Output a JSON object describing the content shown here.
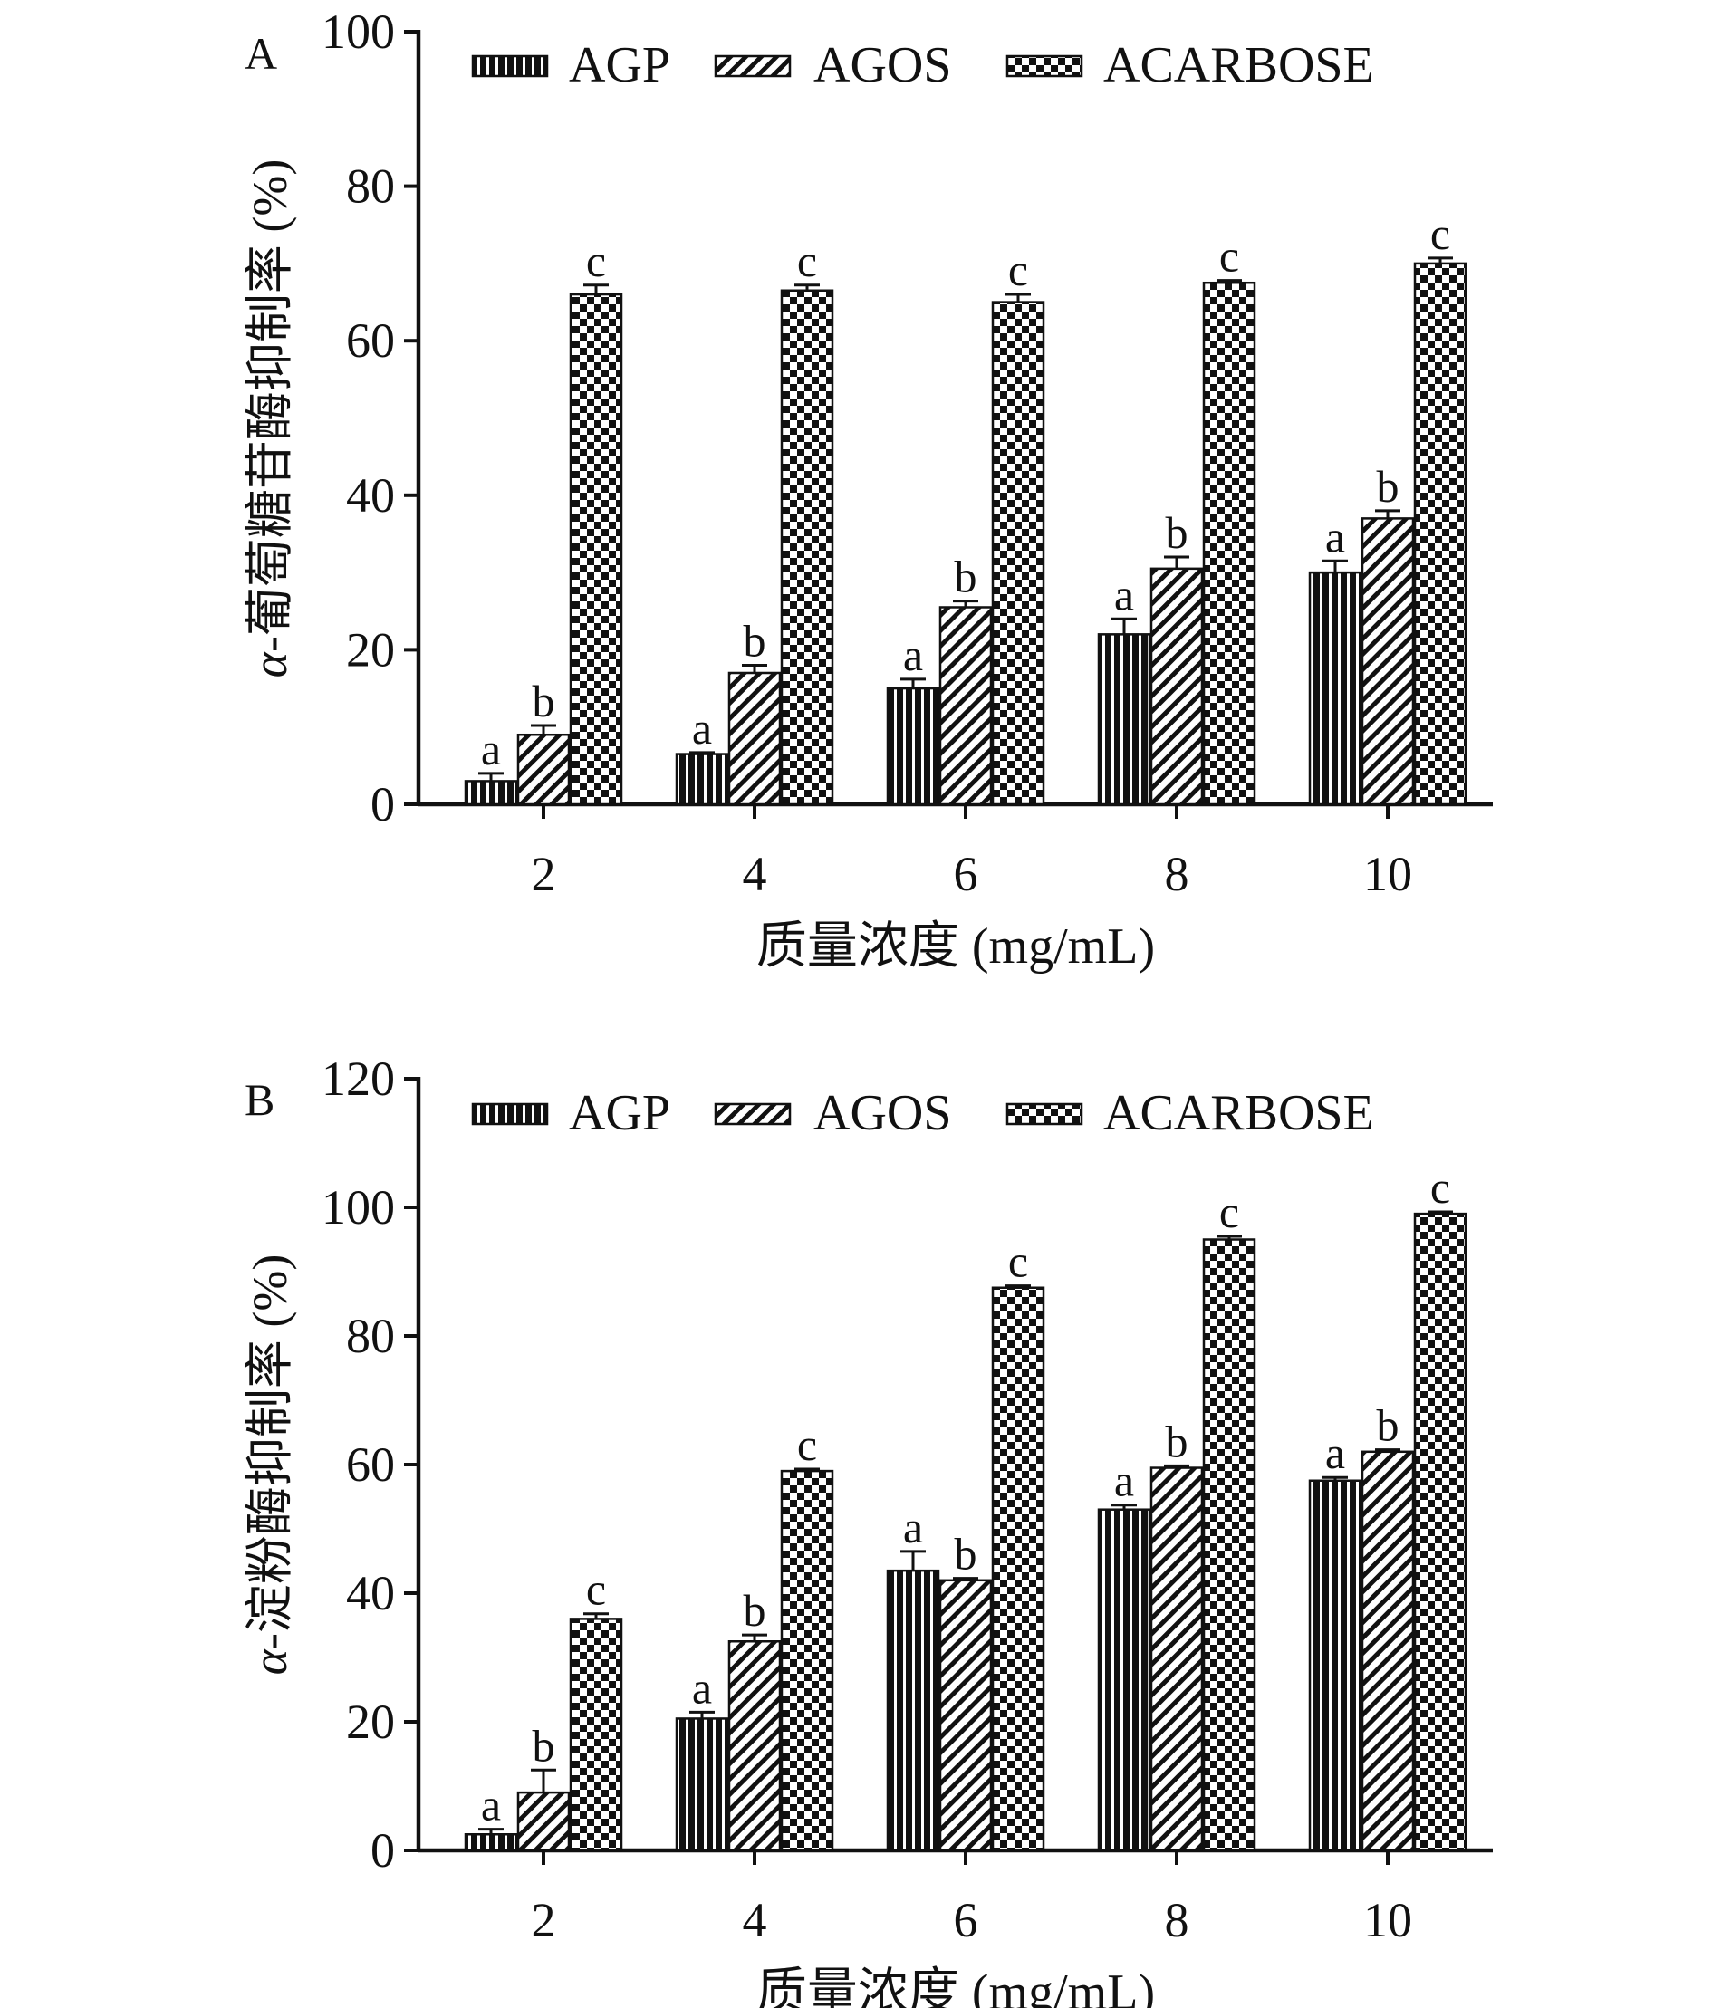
{
  "colors": {
    "ink": "#111111",
    "background": "#ffffff"
  },
  "series_names": [
    "AGP",
    "AGOS",
    "ACARBOSE"
  ],
  "chart_data": [
    {
      "panel_label": "A",
      "type": "bar",
      "xlabel": "质量浓度 (mg/mL)",
      "ylabel": "α-葡萄糖苷酶抑制率 (%)",
      "ylabel_prefix": "α",
      "ylabel_rest": "-葡萄糖苷酶抑制率 (%)",
      "ylim": [
        0,
        100
      ],
      "yticks": [
        0,
        20,
        40,
        60,
        80,
        100
      ],
      "categories": [
        "2",
        "4",
        "6",
        "8",
        "10"
      ],
      "legend_position": "top",
      "series": [
        {
          "name": "AGP",
          "pattern": "vertical-stripes",
          "values": [
            3,
            6.5,
            15,
            22,
            30
          ],
          "errors": [
            1,
            0.2,
            1.2,
            2,
            1.5
          ],
          "letters": [
            "a",
            "a",
            "a",
            "a",
            "a"
          ]
        },
        {
          "name": "AGOS",
          "pattern": "diagonal-hatch",
          "values": [
            9,
            17,
            25.5,
            30.5,
            37
          ],
          "errors": [
            1.2,
            1,
            0.8,
            1.5,
            1
          ],
          "letters": [
            "b",
            "b",
            "b",
            "b",
            "b"
          ]
        },
        {
          "name": "ACARBOSE",
          "pattern": "checkerboard",
          "values": [
            66,
            66.5,
            65,
            67.5,
            70
          ],
          "errors": [
            1.2,
            0.7,
            1,
            0.3,
            0.7
          ],
          "letters": [
            "c",
            "c",
            "c",
            "c",
            "c"
          ]
        }
      ]
    },
    {
      "panel_label": "B",
      "type": "bar",
      "xlabel": "质量浓度 (mg/mL)",
      "ylabel": "α-淀粉酶抑制率 (%)",
      "ylabel_prefix": "α",
      "ylabel_rest": "-淀粉酶抑制率 (%)",
      "ylim": [
        0,
        120
      ],
      "yticks": [
        0,
        20,
        40,
        60,
        80,
        100,
        120
      ],
      "categories": [
        "2",
        "4",
        "6",
        "8",
        "10"
      ],
      "legend_position": "top",
      "series": [
        {
          "name": "AGP",
          "pattern": "vertical-stripes",
          "values": [
            2.5,
            20.5,
            43.5,
            53,
            57.5
          ],
          "errors": [
            0.8,
            1,
            3,
            0.7,
            0.5
          ],
          "letters": [
            "a",
            "a",
            "a",
            "a",
            "a"
          ]
        },
        {
          "name": "AGOS",
          "pattern": "diagonal-hatch",
          "values": [
            9,
            32.5,
            42,
            59.5,
            62
          ],
          "errors": [
            3.5,
            1,
            0.3,
            0.3,
            0.3
          ],
          "letters": [
            "b",
            "b",
            "b",
            "b",
            "b"
          ]
        },
        {
          "name": "ACARBOSE",
          "pattern": "checkerboard",
          "values": [
            36,
            59,
            87.5,
            95,
            99
          ],
          "errors": [
            0.8,
            0.3,
            0.3,
            0.5,
            0.3
          ],
          "letters": [
            "c",
            "c",
            "c",
            "c",
            "c"
          ]
        }
      ]
    }
  ]
}
